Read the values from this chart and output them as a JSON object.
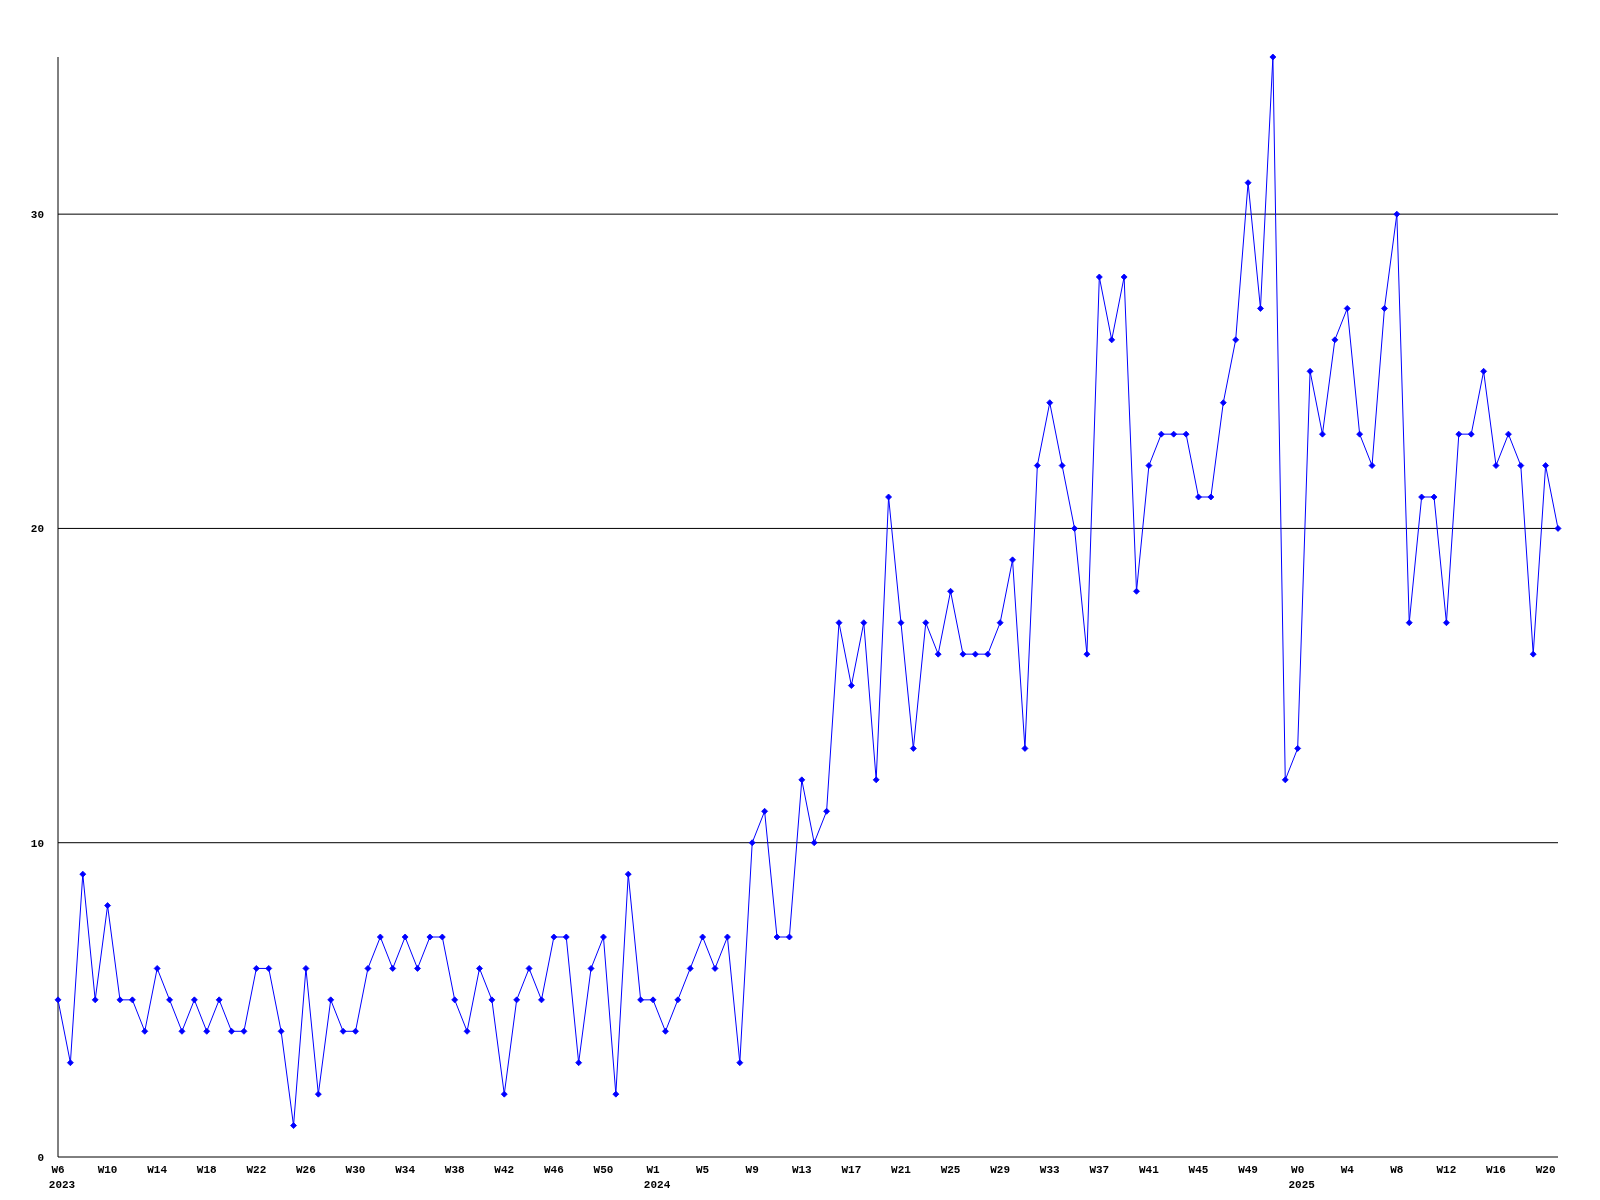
{
  "chart_data": {
    "type": "line",
    "categories": [
      "W6\n2023",
      null,
      null,
      null,
      "W10",
      null,
      null,
      null,
      "W14",
      null,
      null,
      null,
      "W18",
      null,
      null,
      null,
      "W22",
      null,
      null,
      null,
      "W26",
      null,
      null,
      null,
      "W30",
      null,
      null,
      null,
      "W34",
      null,
      null,
      null,
      "W38",
      null,
      null,
      null,
      "W42",
      null,
      null,
      null,
      "W46",
      null,
      null,
      null,
      "W50",
      null,
      null,
      null,
      "W1\n2024",
      null,
      null,
      null,
      "W5",
      null,
      null,
      null,
      "W9",
      null,
      null,
      null,
      "W13",
      null,
      null,
      null,
      "W17",
      null,
      null,
      null,
      "W21",
      null,
      null,
      null,
      "W25",
      null,
      null,
      null,
      "W29",
      null,
      null,
      null,
      "W33",
      null,
      null,
      null,
      "W37",
      null,
      null,
      null,
      "W41",
      null,
      null,
      null,
      "W45",
      null,
      null,
      null,
      "W49",
      null,
      null,
      null,
      "W0\n2025",
      null,
      null,
      null,
      "W4",
      null,
      null,
      null,
      "W8",
      null,
      null,
      null,
      "W12",
      null,
      null,
      null,
      "W16",
      null,
      null,
      null,
      "W20",
      null
    ],
    "series": [
      {
        "color": "#0000ff",
        "values": [
          5,
          3,
          9,
          5,
          8,
          5,
          5,
          4,
          6,
          5,
          4,
          5,
          4,
          5,
          4,
          4,
          6,
          6,
          4,
          1,
          6,
          2,
          5,
          4,
          4,
          6,
          7,
          6,
          7,
          6,
          7,
          7,
          5,
          4,
          6,
          5,
          2,
          5,
          6,
          5,
          7,
          7,
          3,
          6,
          7,
          2,
          9,
          5,
          5,
          4,
          5,
          6,
          7,
          6,
          7,
          3,
          10,
          11,
          7,
          7,
          12,
          10,
          11,
          17,
          15,
          17,
          12,
          21,
          17,
          13,
          17,
          16,
          18,
          16,
          16,
          16,
          17,
          19,
          13,
          22,
          24,
          22,
          20,
          16,
          28,
          26,
          28,
          18,
          22,
          23,
          23,
          23,
          21,
          21,
          24,
          26,
          31,
          27,
          35,
          12,
          13,
          25,
          23,
          26,
          27,
          23,
          22,
          27,
          30,
          17,
          21,
          21,
          17,
          23,
          23,
          25,
          22,
          23,
          22,
          16,
          22,
          20
        ]
      }
    ],
    "ylim": [
      0,
      35
    ],
    "yticks": [
      0,
      10,
      20,
      30
    ],
    "grid": "y",
    "marker": "diamond",
    "line_style": "solid"
  }
}
